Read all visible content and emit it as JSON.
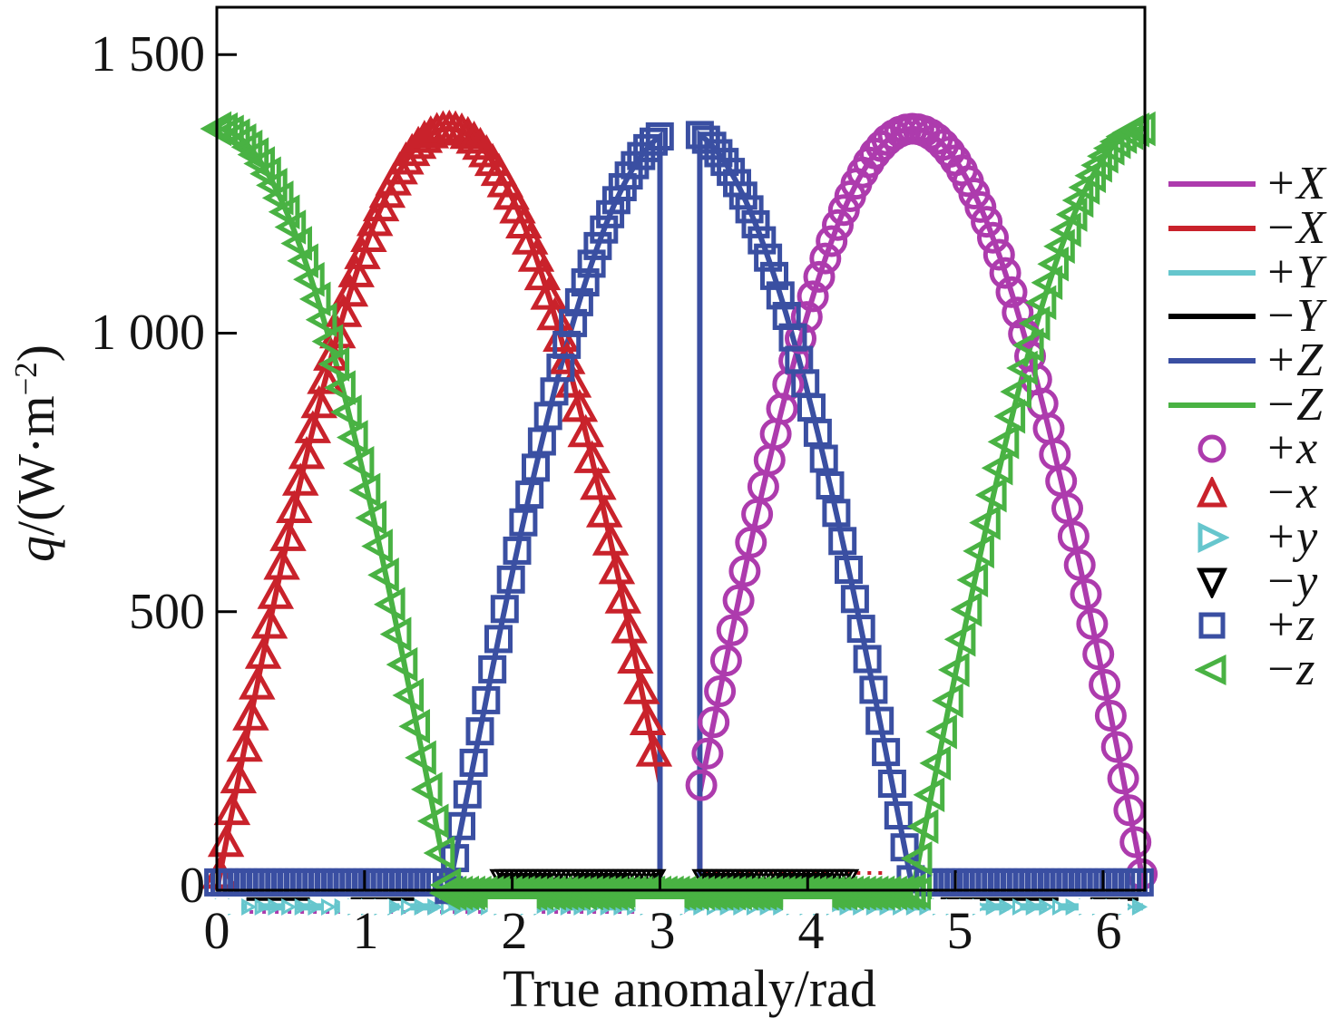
{
  "figure": {
    "background": "#ffffff"
  },
  "axes": {
    "x": {
      "title": "True anomaly/rad",
      "tick_labels": [
        "0",
        "1",
        "2",
        "3",
        "4",
        "5",
        "6"
      ]
    },
    "y": {
      "title_var": "q",
      "title_unit_pre": "/(W·m",
      "title_sup": "−2",
      "title_close": ")",
      "tick_labels": [
        "1 500",
        "1 000",
        "500",
        "0"
      ]
    }
  },
  "legend": {
    "entries": [
      {
        "label": "+X",
        "color": "#ad3bad",
        "swatch": "line"
      },
      {
        "label": "−X",
        "color": "#c9222b",
        "swatch": "line"
      },
      {
        "label": "+Y",
        "color": "#66c6cd",
        "swatch": "line"
      },
      {
        "label": "−Y",
        "color": "#000000",
        "swatch": "line"
      },
      {
        "label": "+Z",
        "color": "#3a4fa2",
        "swatch": "line"
      },
      {
        "label": "−Z",
        "color": "#49b243",
        "swatch": "line"
      },
      {
        "label": "+x",
        "color": "#ad3bad",
        "swatch": "circle"
      },
      {
        "label": "−x",
        "color": "#c9222b",
        "swatch": "triangle-up"
      },
      {
        "label": "+y",
        "color": "#66c6cd",
        "swatch": "triangle-right"
      },
      {
        "label": "−y",
        "color": "#000000",
        "swatch": "triangle-down"
      },
      {
        "label": "+z",
        "color": "#3a4fa2",
        "swatch": "square"
      },
      {
        "label": "−z",
        "color": "#49b243",
        "swatch": "triangle-left"
      }
    ]
  },
  "chart_data": {
    "type": "line",
    "title": "",
    "xlabel": "True anomaly/rad",
    "ylabel": "q/(W·m⁻²)",
    "xlim": [
      0,
      6.283
    ],
    "ylim": [
      0,
      1585
    ],
    "x_ticks": [
      0,
      1,
      2,
      3,
      4,
      5,
      6
    ],
    "y_ticks": [
      0,
      500,
      1000,
      1500
    ],
    "grid": false,
    "legend_position": "right",
    "solar_constant_W_m2": 1367,
    "eclipse_interval_rad": [
      3.0,
      3.27
    ],
    "description": "Solar heat flux q on six satellite faces versus true anomaly over one orbit (0–2π rad). Uppercase faces (+X…−Z) are plotted as lines, lowercase faces (+x…−z) as hollow markers tracing nearly the same curves. Flux drops vertically to zero inside the Earth-shadow eclipse between ≈3.0 and ≈3.27 rad. Peak flux ≈1367 W·m⁻²: −X peaks at ν≈π/2, +Z at ν≈π (clipped by the eclipse), +X at ν≈3π/2, −Z is maximal at ν≈0 and 2π. ±Y faces stay near zero the whole orbit.",
    "series": [
      {
        "name": "+X",
        "color": "#ad3bad",
        "render": "line",
        "width": 6,
        "paths": [
          {
            "fn": "nsin",
            "amp": 1367,
            "from": 3.27,
            "to": 6.283,
            "drop_to_zero_at_start": true
          },
          {
            "fn": "const",
            "value": -39,
            "from": 0.05,
            "to": 3.2,
            "width": 4,
            "dash": "4 10"
          }
        ]
      },
      {
        "name": "−X",
        "color": "#c9222b",
        "render": "line",
        "width": 6,
        "paths": [
          {
            "fn": "sin",
            "amp": 1367,
            "from": 0,
            "to": 3.0
          },
          {
            "fn": "const",
            "value": 31,
            "from": 3.3,
            "to": 4.55,
            "width": 4,
            "dash": "4 8"
          }
        ]
      },
      {
        "name": "+Y",
        "color": "#66c6cd",
        "render": "line",
        "width": 8,
        "paths": [
          {
            "fn": "const",
            "value": -30,
            "from": 0.02,
            "to": 6.27,
            "dash": "30 12"
          }
        ]
      },
      {
        "name": "−Y",
        "color": "#000000",
        "render": "line",
        "width": 4,
        "paths": [
          {
            "fn": "const",
            "value": -16,
            "from": 0.2,
            "to": 1.6,
            "dash": "70 45"
          },
          {
            "fn": "const",
            "value": 27,
            "from": 1.9,
            "to": 3.0,
            "width": 5,
            "dash": "60 25"
          },
          {
            "fn": "const",
            "value": 27,
            "from": 3.27,
            "to": 4.3,
            "width": 5,
            "dash": "60 25"
          },
          {
            "fn": "const",
            "value": -16,
            "from": 4.9,
            "to": 6.24,
            "dash": "130 35"
          }
        ]
      },
      {
        "name": "+Z",
        "color": "#3a4fa2",
        "render": "line",
        "width": 6,
        "paths": [
          {
            "fn": "ncos",
            "amp": 1367,
            "from": 1.571,
            "to": 3.0,
            "drop_to_zero_at_end": true
          },
          {
            "fn": "ncos",
            "amp": 1367,
            "from": 3.27,
            "to": 4.712,
            "drop_to_zero_at_start": true
          }
        ]
      },
      {
        "name": "−Z",
        "color": "#49b243",
        "render": "line",
        "width": 6,
        "paths": [
          {
            "fn": "cos",
            "amp": 1367,
            "from": 0,
            "to": 1.571
          },
          {
            "fn": "cos",
            "amp": 1367,
            "from": 4.712,
            "to": 6.283
          }
        ]
      },
      {
        "name": "+x",
        "color": "#ad3bad",
        "render": "markers",
        "marker": "circle",
        "size": 30,
        "stroke": 5,
        "step": 0.042,
        "paths": [
          {
            "fn": "nsin",
            "amp": 1367,
            "from": 3.28,
            "to": 6.283
          }
        ]
      },
      {
        "name": "−x",
        "color": "#c9222b",
        "render": "markers",
        "marker": "triangle-up",
        "size": 32,
        "stroke": 5,
        "step": 0.042,
        "paths": [
          {
            "fn": "sin",
            "amp": 1367,
            "from": 0.02,
            "to": 3.0
          }
        ]
      },
      {
        "name": "+y",
        "color": "#66c6cd",
        "render": "markers",
        "marker": "triangle-right",
        "size": 14,
        "stroke": 3,
        "step": 0.09,
        "paths": [
          {
            "fn": "const",
            "value": -30,
            "from": 0.03,
            "to": 6.26
          }
        ]
      },
      {
        "name": "−y",
        "color": "#000000",
        "render": "markers",
        "marker": "triangle-down",
        "size": 13,
        "stroke": 3,
        "step": 0.032,
        "paths": [
          {
            "fn": "const",
            "value": 27,
            "from": 1.9,
            "to": 3.0
          },
          {
            "fn": "const",
            "value": 27,
            "from": 3.27,
            "to": 4.3
          }
        ]
      },
      {
        "name": "+z",
        "color": "#3a4fa2",
        "render": "markers",
        "marker": "square",
        "size": 26,
        "stroke": 5,
        "step": 0.042,
        "paths": [
          {
            "fn": "ncos",
            "amp": 1367,
            "from": 1.571,
            "to": 3.0
          },
          {
            "fn": "ncos",
            "amp": 1367,
            "from": 3.27,
            "to": 4.712
          },
          {
            "fn": "const",
            "value": 14,
            "from": 0.01,
            "to": 1.52
          },
          {
            "fn": "const",
            "value": 14,
            "from": 4.82,
            "to": 6.27
          }
        ]
      },
      {
        "name": "−z",
        "color": "#49b243",
        "render": "markers",
        "marker": "triangle-left",
        "size": 30,
        "stroke": 5,
        "step": 0.042,
        "paths": [
          {
            "fn": "cos",
            "amp": 1367,
            "from": 0.01,
            "to": 1.571
          },
          {
            "fn": "cos",
            "amp": 1367,
            "from": 4.712,
            "to": 6.275
          },
          {
            "fn": "const",
            "value": -5,
            "from": 1.56,
            "to": 4.79
          }
        ]
      }
    ]
  }
}
